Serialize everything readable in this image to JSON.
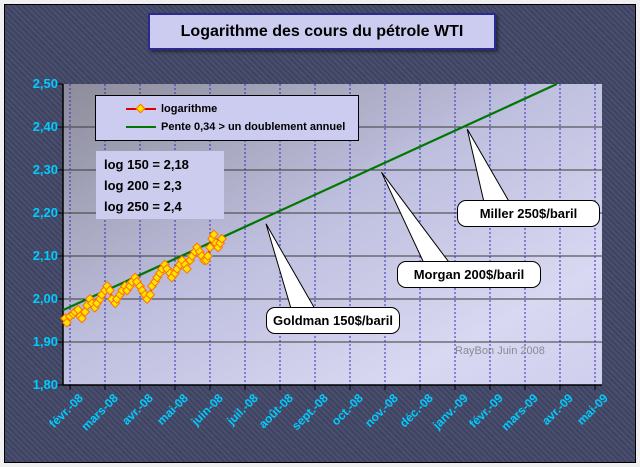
{
  "title": "Logarithme des cours du pétrole WTI",
  "legend": {
    "series1_label": "logarithme",
    "series2_label": "Pente 0,34 > un doublement annuel"
  },
  "log_note": {
    "line1": "log 150 = 2,18",
    "line2": "log 200 = 2,3",
    "line3": "log 250 = 2,4"
  },
  "callouts": [
    {
      "label": "Goldman 150$/baril",
      "points_to": {
        "t": 5.6,
        "v": 2.175
      }
    },
    {
      "label": "Morgan 200$/baril",
      "points_to": {
        "t": 8.9,
        "v": 2.295
      }
    },
    {
      "label": "Miller 250$/baril",
      "points_to": {
        "t": 11.35,
        "v": 2.395
      }
    }
  ],
  "watermark": "RayBon Juin 2008",
  "colors": {
    "background": "#464b6a",
    "plot_top": "#8c8c9a",
    "plot_mid": "#bebede",
    "plot_bottom": "#d8d8f2",
    "axis_labels": "#00ccff",
    "data_line": "#e00000",
    "marker_fill": "#ffe400",
    "marker_edge": "#ff7000",
    "trend_line": "#007700",
    "v_gridline": "#2f2fbf",
    "h_gridline": "#3a3a3a"
  },
  "chart_data": {
    "type": "line",
    "title": "Logarithme des cours du pétrole WTI",
    "xlabel": "",
    "ylabel": "",
    "ylim": [
      1.8,
      2.5
    ],
    "y_tick_labels": [
      "2,50",
      "2,40",
      "2,30",
      "2,20",
      "2,10",
      "2,00",
      "1,90",
      "1,80"
    ],
    "y_tick_values": [
      2.5,
      2.4,
      2.3,
      2.2,
      2.1,
      2.0,
      1.9,
      1.8
    ],
    "x_categories": [
      "févr.-08",
      "mars-08",
      "avr.-08",
      "mai-08",
      "juin-08",
      "juil.-08",
      "août-08",
      "sept.-08",
      "oct.-08",
      "nov.-08",
      "déc.-08",
      "janv.-09",
      "févr.-09",
      "mars-09",
      "avr.-09",
      "mai-09"
    ],
    "grid": {
      "horizontal": "solid",
      "vertical": "dashed"
    },
    "legend_position": "top-left-inside",
    "series": [
      {
        "name": "logarithme",
        "style": "line-with-diamond-markers",
        "points": [
          [
            -0.14,
            1.955
          ],
          [
            -0.09,
            1.945
          ],
          [
            0,
            1.96
          ],
          [
            0.09,
            1.965
          ],
          [
            0.14,
            1.97
          ],
          [
            0.23,
            1.975
          ],
          [
            0.29,
            1.96
          ],
          [
            0.34,
            1.955
          ],
          [
            0.43,
            1.97
          ],
          [
            0.49,
            1.985
          ],
          [
            0.57,
            2.0
          ],
          [
            0.63,
            1.99
          ],
          [
            0.71,
            1.98
          ],
          [
            0.77,
            1.99
          ],
          [
            0.86,
            2.0
          ],
          [
            0.91,
            2.01
          ],
          [
            1.0,
            2.02
          ],
          [
            1.06,
            2.03
          ],
          [
            1.14,
            2.02
          ],
          [
            1.2,
            2.0
          ],
          [
            1.29,
            1.99
          ],
          [
            1.34,
            2.0
          ],
          [
            1.43,
            2.01
          ],
          [
            1.49,
            2.02
          ],
          [
            1.57,
            2.03
          ],
          [
            1.63,
            2.02
          ],
          [
            1.71,
            2.03
          ],
          [
            1.77,
            2.04
          ],
          [
            1.86,
            2.05
          ],
          [
            1.91,
            2.04
          ],
          [
            2.0,
            2.03
          ],
          [
            2.06,
            2.02
          ],
          [
            2.14,
            2.01
          ],
          [
            2.2,
            2.0
          ],
          [
            2.29,
            2.01
          ],
          [
            2.34,
            2.03
          ],
          [
            2.43,
            2.04
          ],
          [
            2.49,
            2.05
          ],
          [
            2.57,
            2.06
          ],
          [
            2.63,
            2.07
          ],
          [
            2.71,
            2.08
          ],
          [
            2.77,
            2.07
          ],
          [
            2.86,
            2.06
          ],
          [
            2.91,
            2.05
          ],
          [
            3.0,
            2.06
          ],
          [
            3.06,
            2.07
          ],
          [
            3.14,
            2.08
          ],
          [
            3.2,
            2.09
          ],
          [
            3.29,
            2.08
          ],
          [
            3.34,
            2.07
          ],
          [
            3.43,
            2.09
          ],
          [
            3.49,
            2.1
          ],
          [
            3.57,
            2.11
          ],
          [
            3.63,
            2.12
          ],
          [
            3.71,
            2.11
          ],
          [
            3.77,
            2.1
          ],
          [
            3.83,
            2.09
          ],
          [
            3.89,
            2.09
          ],
          [
            3.94,
            2.1
          ],
          [
            4.0,
            2.12
          ],
          [
            4.06,
            2.14
          ],
          [
            4.11,
            2.15
          ],
          [
            4.17,
            2.13
          ],
          [
            4.23,
            2.12
          ],
          [
            4.29,
            2.13
          ],
          [
            4.34,
            2.14
          ]
        ]
      },
      {
        "name": "Pente 0,34 > un doublement annuel",
        "style": "straight-trend-line",
        "points": [
          [
            -0.2,
            1.974
          ],
          [
            13.91,
            2.5
          ]
        ]
      }
    ]
  }
}
